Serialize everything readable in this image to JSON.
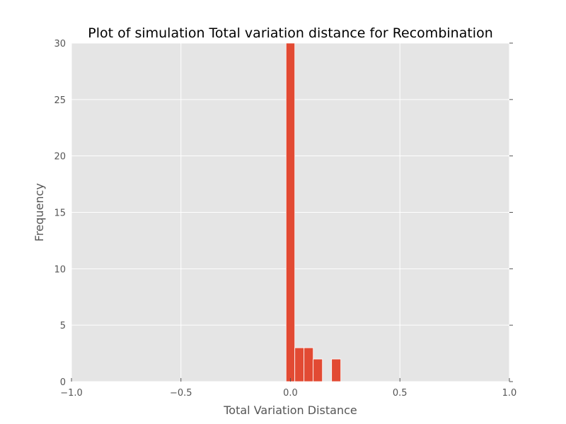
{
  "chart_data": {
    "type": "bar",
    "title": "Plot of simulation Total variation distance for Recombination",
    "xlabel": "Total Variation Distance",
    "ylabel": "Frequency",
    "xlim": [
      -1.0,
      1.0
    ],
    "ylim": [
      0,
      30
    ],
    "x_ticks": [
      "−1.0",
      "−0.5",
      "0.0",
      "0.5",
      "1.0"
    ],
    "y_ticks": [
      "0",
      "5",
      "10",
      "15",
      "20",
      "25",
      "30"
    ],
    "x_tick_values": [
      -1.0,
      -0.5,
      0.0,
      0.5,
      1.0
    ],
    "y_tick_values": [
      0,
      5,
      10,
      15,
      20,
      25,
      30
    ],
    "grid": true,
    "bins": [
      {
        "x0": -0.02,
        "x1": 0.02,
        "value": 30
      },
      {
        "x0": 0.02,
        "x1": 0.062,
        "value": 3
      },
      {
        "x0": 0.062,
        "x1": 0.104,
        "value": 3
      },
      {
        "x0": 0.104,
        "x1": 0.146,
        "value": 2
      },
      {
        "x0": 0.188,
        "x1": 0.23,
        "value": 2
      }
    ],
    "colors": {
      "bar": "#e24a33",
      "background": "#e5e5e5",
      "grid": "#ffffff"
    }
  }
}
